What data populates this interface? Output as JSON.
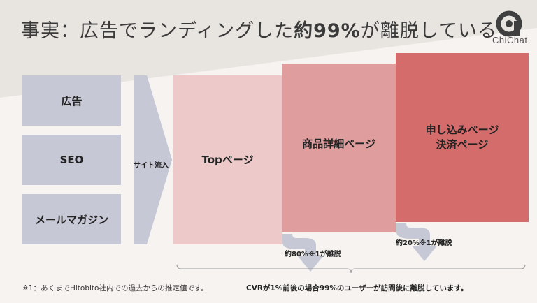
{
  "title": {
    "prefix": "事実：広告でランディングした",
    "highlight": "約99%",
    "suffix": "が離脱している"
  },
  "logo": {
    "text": "ChiChat",
    "icon": "chichat-logo-icon",
    "color": "#4a4a4a"
  },
  "sources": [
    "広告",
    "SEO",
    "メールマガジン"
  ],
  "flow_label": "サイト流入",
  "funnel": [
    {
      "label": "Topページ",
      "color": "#eec9c9"
    },
    {
      "label": "商品詳細ページ",
      "color": "#e09d9d"
    },
    {
      "label": "申し込みページ\n決済ページ",
      "color": "#d46c6c"
    }
  ],
  "dropoffs": [
    {
      "label": "約80%※1が離脱"
    },
    {
      "label": "約20%※1が離脱"
    }
  ],
  "footnote": "※1：あくまでHitobito社内での過去からの推定値です。",
  "summary": "CVRが1%前後の場合99%のユーザーが訪問後に離脱しています。",
  "colors": {
    "source_box": "#c7c8d6",
    "arrow": "#c7c8d6",
    "background": "#f6f3f0"
  }
}
